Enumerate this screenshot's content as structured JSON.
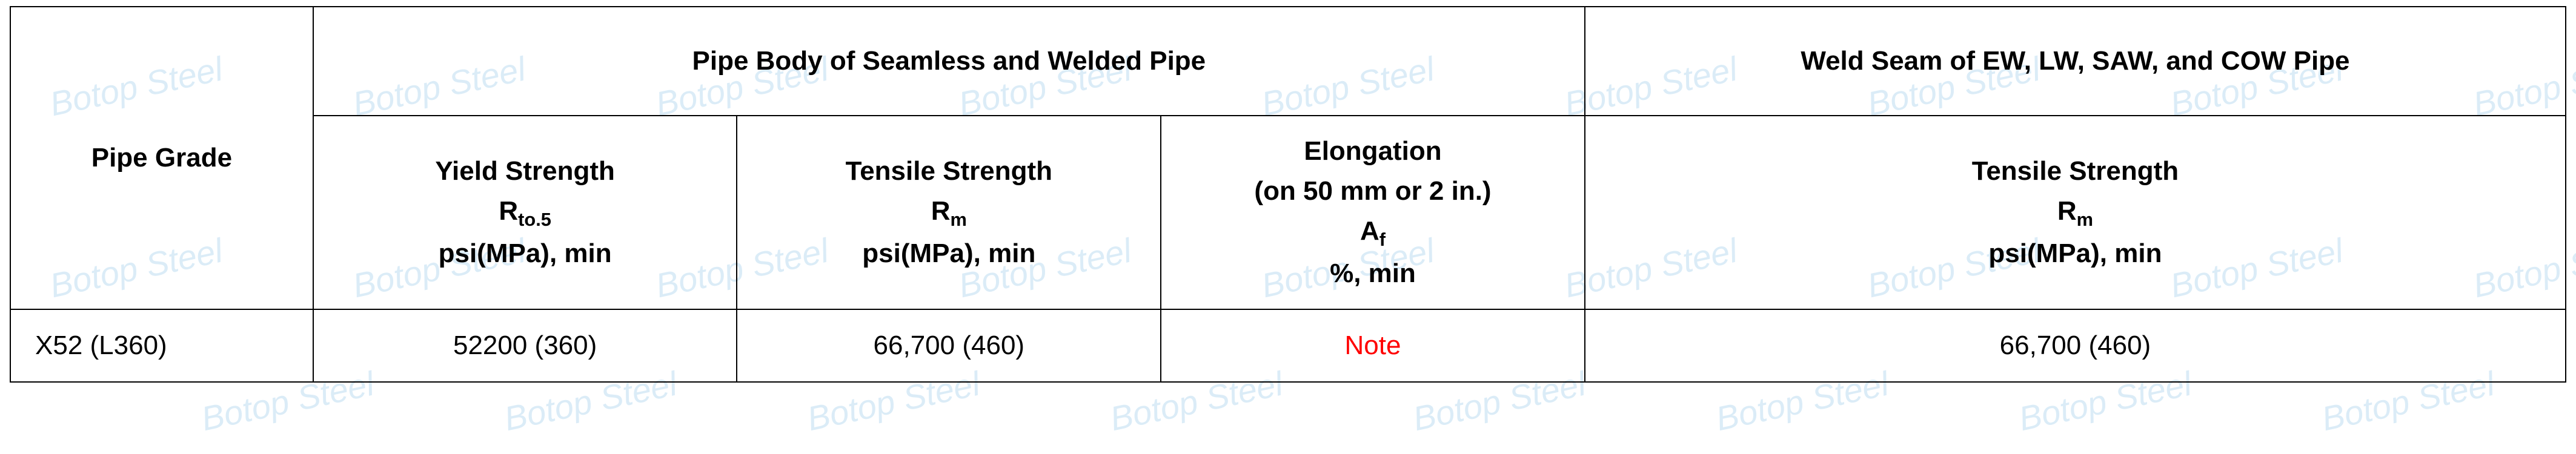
{
  "watermark": {
    "text": "Botop Steel",
    "color": "#cce5f5",
    "fontsize": 56
  },
  "table": {
    "border_color": "#000000",
    "background_color": "#ffffff",
    "header_fontsize": 44,
    "data_fontsize": 44,
    "note_color": "#ff0000",
    "columns": {
      "pipe_grade": {
        "label": "Pipe Grade"
      },
      "group1": {
        "label": "Pipe Body of Seamless and Welded Pipe"
      },
      "group2": {
        "label": "Weld Seam of EW, LW, SAW, and COW Pipe"
      },
      "yield_strength": {
        "line1": "Yield Strength",
        "line2_main": "R",
        "line2_sub": "to.5",
        "line3": "psi(MPa), min"
      },
      "tensile_strength1": {
        "line1": "Tensile Strength",
        "line2_main": "R",
        "line2_sub": "m",
        "line3": "psi(MPa), min"
      },
      "elongation": {
        "line1": "Elongation",
        "line2": "(on 50 mm or 2 in.)",
        "line3_main": "A",
        "line3_sub": "f",
        "line4": "%, min"
      },
      "tensile_strength2": {
        "line1": "Tensile Strength",
        "line2_main": "R",
        "line2_sub": "m",
        "line3": "psi(MPa), min"
      }
    },
    "rows": [
      {
        "pipe_grade": "X52 (L360)",
        "yield_strength": "52200 (360)",
        "tensile_strength1": "66,700 (460)",
        "elongation": "Note",
        "elongation_is_note": true,
        "tensile_strength2": "66,700 (460)"
      }
    ]
  }
}
